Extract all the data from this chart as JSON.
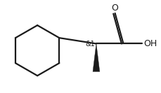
{
  "bg_color": "#ffffff",
  "line_color": "#1a1a1a",
  "line_width": 1.6,
  "figsize": [
    2.3,
    1.33
  ],
  "dpi": 100,
  "chiral_label": "&1",
  "chiral_fontsize": 7.0,
  "oh_label": "OH",
  "oh_fontsize": 9.0,
  "o_label": "O",
  "o_fontsize": 9.0
}
